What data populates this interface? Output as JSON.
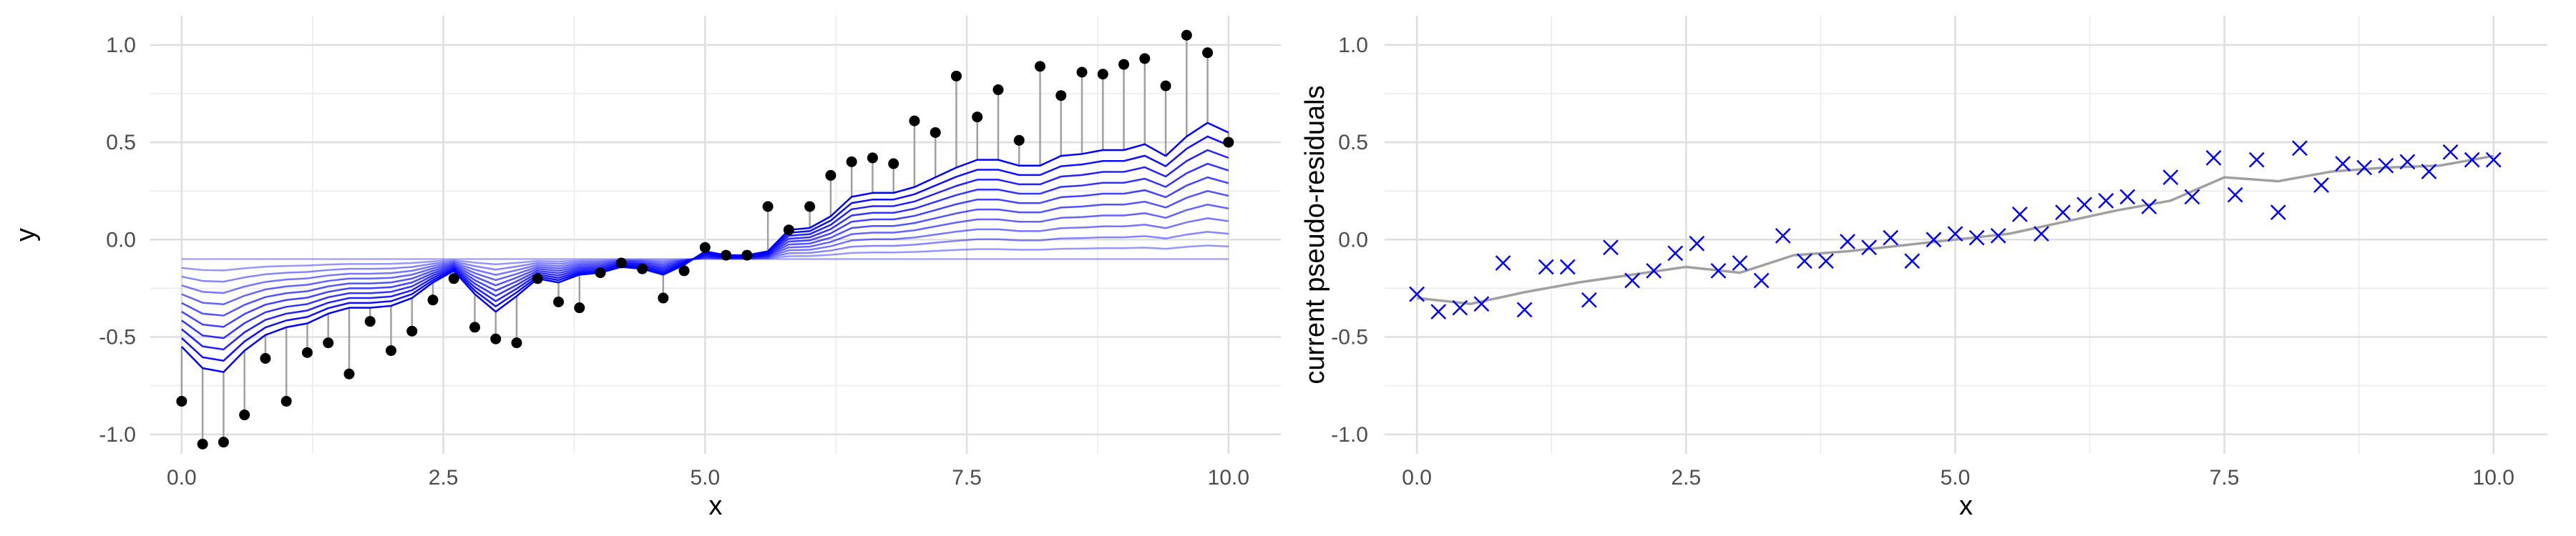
{
  "chart_data": [
    {
      "type": "line",
      "xlabel": "x",
      "ylabel": "y",
      "xlim": [
        -0.3,
        10.5
      ],
      "ylim": [
        -1.1,
        1.15
      ],
      "x_ticks": [
        0.0,
        2.5,
        5.0,
        7.5,
        10.0
      ],
      "x_tick_labels": [
        "0.0",
        "2.5",
        "5.0",
        "7.5",
        "10.0"
      ],
      "y_ticks": [
        -1.0,
        -0.5,
        0.0,
        0.5,
        1.0
      ],
      "y_tick_labels": [
        "-1.0",
        "-0.5",
        "0.0",
        "0.5",
        "1.0"
      ],
      "grid": true,
      "colors": {
        "points": "#000000",
        "residual_lines": "#a0a0a0",
        "fit_lines": "#0000ff"
      },
      "points": {
        "x": [
          0.0,
          0.2,
          0.4,
          0.6,
          0.8,
          1.0,
          1.2,
          1.4,
          1.6,
          1.8,
          2.0,
          2.2,
          2.4,
          2.6,
          2.8,
          3.0,
          3.2,
          3.4,
          3.6,
          3.8,
          4.0,
          4.2,
          4.4,
          4.6,
          4.8,
          5.0,
          5.2,
          5.4,
          5.6,
          5.8,
          6.0,
          6.2,
          6.4,
          6.6,
          6.8,
          7.0,
          7.2,
          7.4,
          7.6,
          7.8,
          8.0,
          8.2,
          8.4,
          8.6,
          8.8,
          9.0,
          9.2,
          9.4,
          9.6,
          9.8,
          10.0
        ],
        "y": [
          -0.83,
          -1.05,
          -1.04,
          -0.9,
          -0.61,
          -0.83,
          -0.58,
          -0.53,
          -0.69,
          -0.42,
          -0.57,
          -0.47,
          -0.31,
          -0.2,
          -0.45,
          -0.51,
          -0.53,
          -0.2,
          -0.32,
          -0.35,
          -0.17,
          -0.12,
          -0.15,
          -0.3,
          -0.16,
          -0.04,
          -0.08,
          -0.08,
          0.17,
          0.05,
          0.17,
          0.33,
          0.4,
          0.42,
          0.39,
          0.61,
          0.55,
          0.84,
          0.63,
          0.77,
          0.51,
          0.89,
          0.74,
          0.86,
          0.85,
          0.9,
          0.93,
          0.79,
          1.05,
          0.96,
          0.5
        ]
      },
      "fitted_curves": {
        "final": [
          -0.55,
          -0.66,
          -0.68,
          -0.57,
          -0.49,
          -0.45,
          -0.43,
          -0.38,
          -0.35,
          -0.35,
          -0.34,
          -0.3,
          -0.22,
          -0.16,
          -0.28,
          -0.37,
          -0.29,
          -0.2,
          -0.22,
          -0.18,
          -0.17,
          -0.14,
          -0.15,
          -0.18,
          -0.13,
          -0.06,
          -0.08,
          -0.08,
          -0.06,
          0.05,
          0.06,
          0.12,
          0.22,
          0.24,
          0.24,
          0.27,
          0.32,
          0.37,
          0.41,
          0.41,
          0.38,
          0.38,
          0.43,
          0.44,
          0.46,
          0.46,
          0.49,
          0.43,
          0.53,
          0.6,
          0.55
        ],
        "iterations": 10,
        "start_value": -0.1
      }
    },
    {
      "type": "scatter",
      "xlabel": "x",
      "ylabel": "current pseudo-residuals",
      "xlim": [
        -0.3,
        10.5
      ],
      "ylim": [
        -1.1,
        1.15
      ],
      "x_ticks": [
        0.0,
        2.5,
        5.0,
        7.5,
        10.0
      ],
      "x_tick_labels": [
        "0.0",
        "2.5",
        "5.0",
        "7.5",
        "10.0"
      ],
      "y_ticks": [
        -1.0,
        -0.5,
        0.0,
        0.5,
        1.0
      ],
      "y_tick_labels": [
        "-1.0",
        "-0.5",
        "0.0",
        "0.5",
        "1.0"
      ],
      "grid": true,
      "colors": {
        "markers": "#0000ff",
        "smooth_line": "#a0a0a0"
      },
      "points": {
        "x": [
          0.0,
          0.2,
          0.4,
          0.6,
          0.8,
          1.0,
          1.2,
          1.4,
          1.6,
          1.8,
          2.0,
          2.2,
          2.4,
          2.6,
          2.8,
          3.0,
          3.2,
          3.4,
          3.6,
          3.8,
          4.0,
          4.2,
          4.4,
          4.6,
          4.8,
          5.0,
          5.2,
          5.4,
          5.6,
          5.8,
          6.0,
          6.2,
          6.4,
          6.6,
          6.8,
          7.0,
          7.2,
          7.4,
          7.6,
          7.8,
          8.0,
          8.2,
          8.4,
          8.6,
          8.8,
          9.0,
          9.2,
          9.4,
          9.6,
          9.8,
          10.0
        ],
        "y": [
          -0.28,
          -0.37,
          -0.35,
          -0.33,
          -0.12,
          -0.36,
          -0.14,
          -0.14,
          -0.31,
          -0.04,
          -0.21,
          -0.16,
          -0.07,
          -0.02,
          -0.16,
          -0.12,
          -0.21,
          0.02,
          -0.11,
          -0.11,
          -0.01,
          -0.04,
          0.01,
          -0.11,
          0.0,
          0.03,
          0.01,
          0.02,
          0.13,
          0.03,
          0.14,
          0.18,
          0.2,
          0.22,
          0.17,
          0.32,
          0.22,
          0.42,
          0.23,
          0.41,
          0.14,
          0.47,
          0.28,
          0.39,
          0.37,
          0.38,
          0.4,
          0.35,
          0.45,
          0.41,
          0.41
        ]
      },
      "smooth_line": {
        "x": [
          0.0,
          0.5,
          1.0,
          1.5,
          2.0,
          2.5,
          3.0,
          3.5,
          4.0,
          4.5,
          5.0,
          5.5,
          6.0,
          6.5,
          7.0,
          7.5,
          8.0,
          8.5,
          9.0,
          9.5,
          10.0
        ],
        "y": [
          -0.3,
          -0.33,
          -0.27,
          -0.22,
          -0.18,
          -0.14,
          -0.17,
          -0.08,
          -0.06,
          -0.03,
          0.0,
          0.03,
          0.09,
          0.15,
          0.2,
          0.32,
          0.3,
          0.35,
          0.37,
          0.38,
          0.43
        ]
      }
    }
  ]
}
